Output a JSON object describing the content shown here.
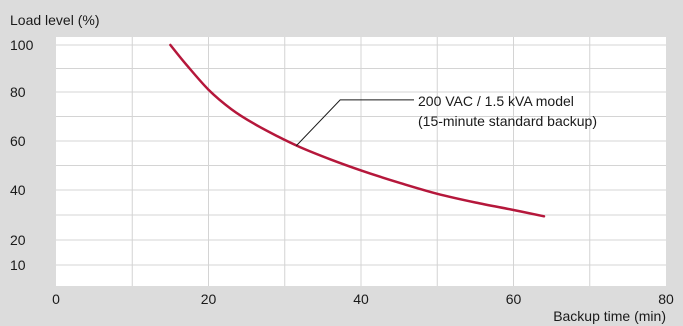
{
  "chart_data": {
    "type": "line",
    "title": "",
    "ylabel": "Load level (%)",
    "xlabel": "Backup time (min)",
    "xlim": [
      0,
      80
    ],
    "x_ticks": [
      0,
      20,
      40,
      60,
      80
    ],
    "y_ticks": [
      10,
      20,
      40,
      60,
      80,
      100
    ],
    "grid": true,
    "colors": {
      "background": "#dcdcdc",
      "plot_area": "#ffffff",
      "grid": "#d4d4d4",
      "series": "#b5173b",
      "text": "#1a1a1a"
    },
    "series": [
      {
        "name": "200 VAC / 1.5 kVA model (15-minute standard backup)",
        "x": [
          15,
          17,
          20,
          23,
          26,
          29,
          32,
          36,
          40,
          45,
          50,
          55,
          60,
          64
        ],
        "y": [
          100,
          92,
          81,
          73,
          67,
          62,
          57.5,
          52.5,
          48,
          43,
          38.5,
          35,
          32,
          29.5
        ]
      }
    ],
    "annotation": {
      "lines": [
        "200 VAC / 1.5 kVA model",
        "(15-minute standard backup)"
      ],
      "points_to": [
        31.5,
        58
      ]
    }
  }
}
